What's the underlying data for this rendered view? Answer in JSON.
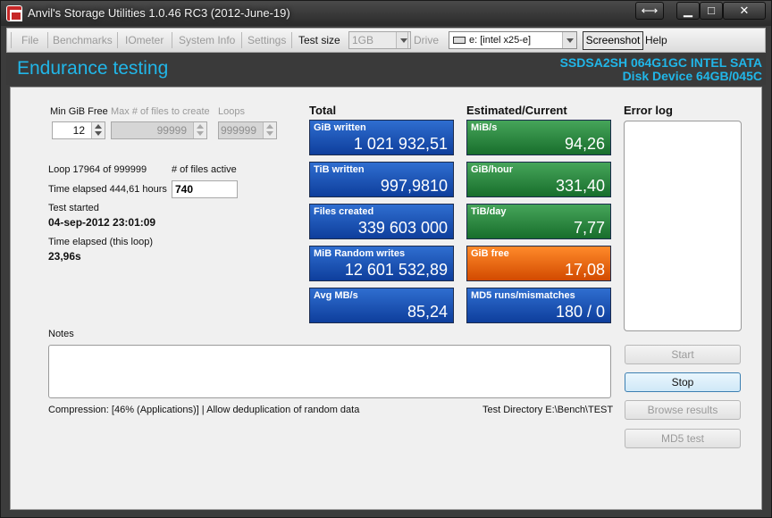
{
  "window": {
    "title": "Anvil's Storage Utilities 1.0.46 RC3 (2012-June-19)"
  },
  "caption_buttons": {
    "swap": "⟷",
    "minimize": "▁",
    "maximize": "□",
    "close": "✕"
  },
  "menu": {
    "file": "File",
    "benchmarks": "Benchmarks",
    "iometer": "IOmeter",
    "system_info": "System Info",
    "settings": "Settings",
    "test_size_label": "Test size",
    "test_size_value": "1GB",
    "drive_label": "Drive",
    "drive_value": "e: [intel x25-e]",
    "screenshot": "Screenshot",
    "help": "Help"
  },
  "header": {
    "title": "Endurance testing",
    "device_line1": "SSDSA2SH 064G1GC INTEL SATA",
    "device_line2": "Disk Device 64GB/045C"
  },
  "params": {
    "min_gib_free_label": "Min GiB Free",
    "min_gib_free_value": "12",
    "max_files_label": "Max # of files to create",
    "max_files_value": "99999",
    "loops_label": "Loops",
    "loops_value": "999999"
  },
  "status": {
    "loop": "Loop 17964 of 999999",
    "files_active_label": "# of files active",
    "files_active_value": "740",
    "time_elapsed": "Time elapsed 444,61 hours",
    "test_started_label": "Test started",
    "test_started_value": "04-sep-2012 23:01:09",
    "loop_elapsed_label": "Time elapsed (this loop)",
    "loop_elapsed_value": "23,96s"
  },
  "total": {
    "heading": "Total",
    "tiles": [
      {
        "label": "GiB written",
        "value": "1 021 932,51"
      },
      {
        "label": "TiB written",
        "value": "997,9810"
      },
      {
        "label": "Files created",
        "value": "339 603 000"
      },
      {
        "label": "MiB Random writes",
        "value": "12 601 532,89"
      },
      {
        "label": "Avg MB/s",
        "value": "85,24"
      }
    ]
  },
  "estimated": {
    "heading": "Estimated/Current",
    "tiles": [
      {
        "label": "MiB/s",
        "value": "94,26",
        "color": "#2e8b44"
      },
      {
        "label": "GiB/hour",
        "value": "331,40",
        "color": "#2e8b44"
      },
      {
        "label": "TiB/day",
        "value": "7,77",
        "color": "#2e8b44"
      },
      {
        "label": "GiB free",
        "value": "17,08",
        "color": "#ee6a10"
      },
      {
        "label": "MD5 runs/mismatches",
        "value": "180 / 0",
        "color": "#1f55b8"
      }
    ]
  },
  "error_log": {
    "heading": "Error log"
  },
  "notes": {
    "label": "Notes"
  },
  "footer": {
    "compression": "Compression: [46% (Applications)] | Allow deduplication of random data",
    "test_directory": "Test Directory E:\\Bench\\TEST"
  },
  "buttons": {
    "start": "Start",
    "stop": "Stop",
    "browse_results": "Browse results",
    "md5_test": "MD5 test"
  }
}
